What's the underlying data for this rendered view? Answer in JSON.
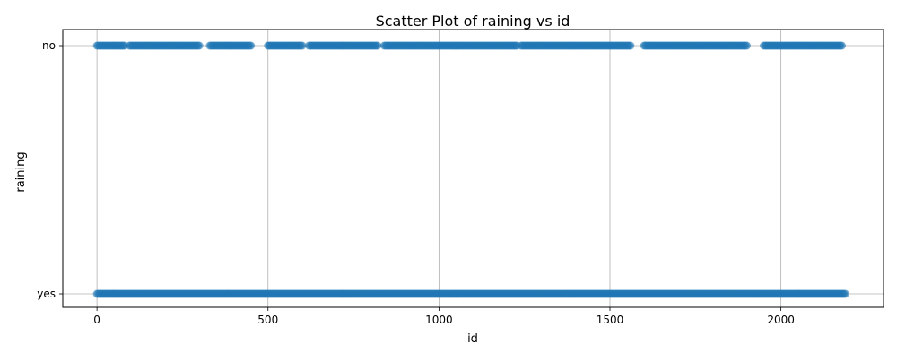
{
  "chart_data": {
    "type": "scatter",
    "title": "Scatter Plot of raining vs id",
    "xlabel": "id",
    "ylabel": "raining",
    "xlim": [
      -100,
      2300
    ],
    "x_ticks": [
      0,
      500,
      1000,
      1500,
      2000
    ],
    "x_tick_labels": [
      "0",
      "500",
      "1000",
      "1500",
      "2000"
    ],
    "y_categories": [
      "yes",
      "no"
    ],
    "y_tick_labels": [
      "no",
      "yes"
    ],
    "grid": true,
    "marker_color": "#1f77b4",
    "marker_alpha": 0.6,
    "series": [
      {
        "category": "no",
        "x_ranges": [
          [
            0,
            80
          ],
          [
            95,
            300
          ],
          [
            330,
            450
          ],
          [
            500,
            600
          ],
          [
            620,
            820
          ],
          [
            840,
            1230
          ],
          [
            1240,
            1560
          ],
          [
            1600,
            1900
          ],
          [
            1950,
            2180
          ]
        ]
      },
      {
        "category": "yes",
        "x_ranges": [
          [
            0,
            2190
          ]
        ]
      }
    ]
  }
}
